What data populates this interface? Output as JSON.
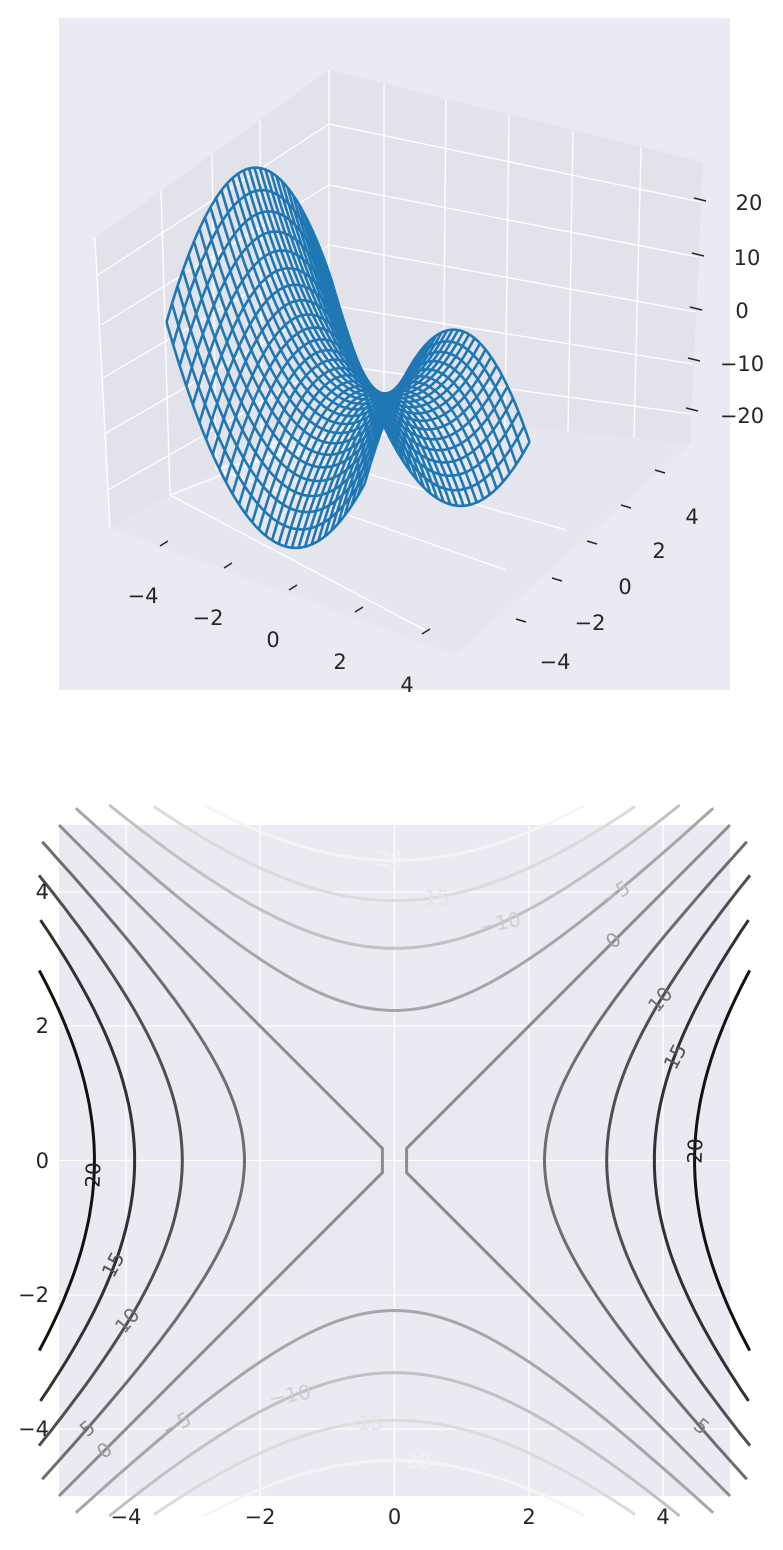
{
  "chart_data": [
    {
      "type": "wireframe3d",
      "title": "",
      "function": "z = x^2 - y^2",
      "x_range": [
        -5,
        5
      ],
      "y_range": [
        -5,
        5
      ],
      "z_range": [
        -25,
        25
      ],
      "line_color": "#1f77b4",
      "x_ticks": [
        "−4",
        "−2",
        "0",
        "2",
        "4"
      ],
      "y_ticks": [
        "−4",
        "−2",
        "0",
        "2",
        "4"
      ],
      "z_ticks": [
        "−20",
        "−10",
        "0",
        "10",
        "20"
      ]
    },
    {
      "type": "contour",
      "title": "",
      "function": "z = x^2 - y^2",
      "xlim": [
        -5,
        5
      ],
      "ylim": [
        -5,
        5
      ],
      "levels": [
        -20,
        -15,
        -10,
        -5,
        0,
        5,
        10,
        15,
        20
      ],
      "colormap": "Greys",
      "x_ticks": [
        "−4",
        "−2",
        "0",
        "2",
        "4"
      ],
      "y_ticks": [
        "−4",
        "−2",
        "0",
        "2",
        "4"
      ],
      "contour_labels": [
        "20",
        "15",
        "−10",
        "−5",
        "0",
        "10",
        "15",
        "20",
        "20",
        "15",
        "10",
        "5",
        "0",
        "−5",
        "−10",
        "−15",
        "−20",
        "5"
      ]
    }
  ]
}
